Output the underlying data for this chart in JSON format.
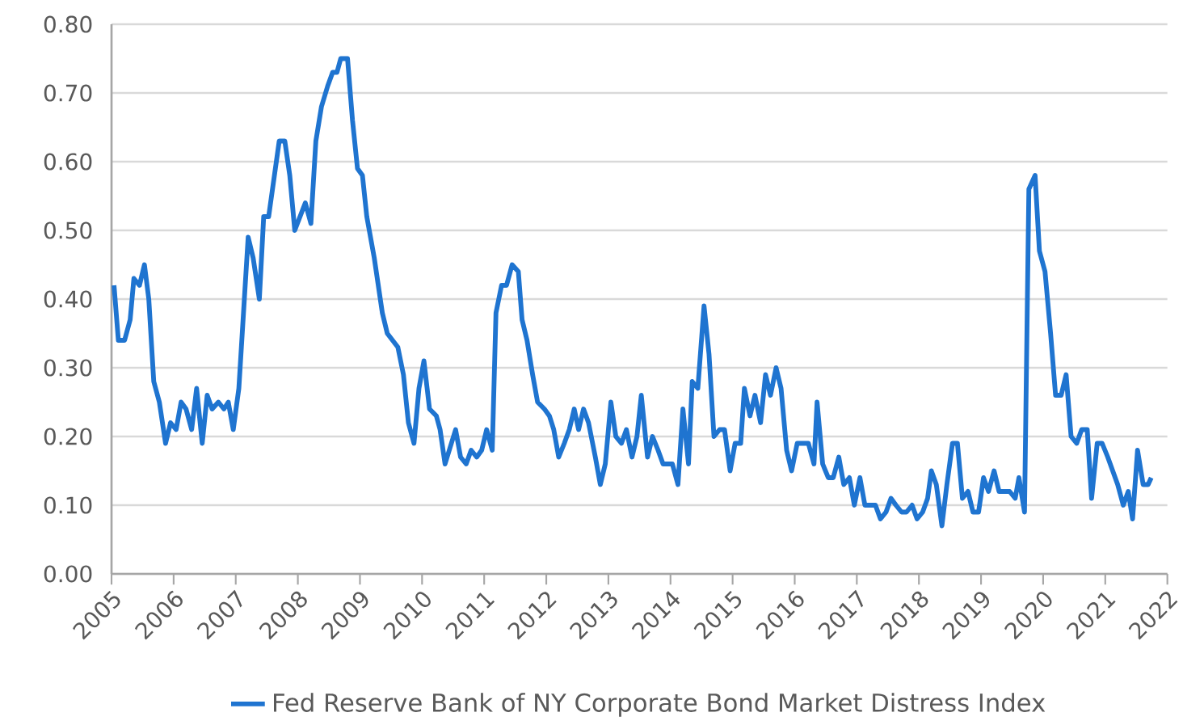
{
  "chart_data": {
    "type": "line",
    "series": [
      {
        "name": "Fed Reserve Bank of NY Corporate Bond Market Distress Index",
        "color": "#1f74d0",
        "x": [
          2005.04,
          2005.11,
          2005.21,
          2005.3,
          2005.36,
          2005.45,
          2005.53,
          2005.6,
          2005.68,
          2005.77,
          2005.87,
          2005.95,
          2006.04,
          2006.12,
          2006.2,
          2006.29,
          2006.37,
          2006.46,
          2006.54,
          2006.62,
          2006.72,
          2006.81,
          2006.88,
          2006.96,
          2007.05,
          2007.2,
          2007.28,
          2007.38,
          2007.45,
          2007.53,
          2007.7,
          2007.79,
          2007.87,
          2007.95,
          2008.12,
          2008.21,
          2008.29,
          2008.38,
          2008.48,
          2008.56,
          2008.63,
          2008.69,
          2008.8,
          2008.88,
          2008.96,
          2009.04,
          2009.11,
          2009.23,
          2009.36,
          2009.44,
          2009.61,
          2009.7,
          2009.78,
          2009.87,
          2009.95,
          2010.03,
          2010.12,
          2010.23,
          2010.29,
          2010.37,
          2010.54,
          2010.62,
          2010.71,
          2010.79,
          2010.88,
          2010.96,
          2011.04,
          2011.13,
          2011.19,
          2011.28,
          2011.36,
          2011.45,
          2011.55,
          2011.61,
          2011.69,
          2011.78,
          2011.86,
          2011.97,
          2012.05,
          2012.12,
          2012.2,
          2012.29,
          2012.37,
          2012.45,
          2012.52,
          2012.6,
          2012.68,
          2012.79,
          2012.87,
          2012.95,
          2013.04,
          2013.12,
          2013.21,
          2013.29,
          2013.38,
          2013.46,
          2013.53,
          2013.63,
          2013.71,
          2013.8,
          2013.88,
          2013.96,
          2014.03,
          2014.12,
          2014.2,
          2014.29,
          2014.35,
          2014.44,
          2014.54,
          2014.62,
          2014.7,
          2014.79,
          2014.87,
          2014.96,
          2015.04,
          2015.13,
          2015.19,
          2015.28,
          2015.36,
          2015.45,
          2015.53,
          2015.61,
          2015.7,
          2015.78,
          2015.87,
          2015.95,
          2016.04,
          2016.14,
          2016.22,
          2016.31,
          2016.36,
          2016.45,
          2016.54,
          2016.62,
          2016.71,
          2016.79,
          2016.88,
          2016.96,
          2017.05,
          2017.13,
          2017.21,
          2017.3,
          2017.38,
          2017.47,
          2017.55,
          2017.63,
          2017.72,
          2017.8,
          2017.89,
          2017.97,
          2018.06,
          2018.14,
          2018.2,
          2018.28,
          2018.37,
          2018.45,
          2018.54,
          2018.62,
          2018.7,
          2018.79,
          2018.87,
          2018.96,
          2019.04,
          2019.12,
          2019.21,
          2019.29,
          2019.38,
          2019.46,
          2019.55,
          2019.61,
          2019.7,
          2019.77,
          2019.87,
          2019.94,
          2020.03,
          2020.12,
          2020.2,
          2020.29,
          2020.37,
          2020.45,
          2020.54,
          2020.62,
          2020.71,
          2020.78,
          2020.87,
          2020.95,
          2021.04,
          2021.12,
          2021.2,
          2021.29,
          2021.37,
          2021.44,
          2021.52,
          2021.61,
          2021.69,
          2021.74
        ],
        "values": [
          0.42,
          0.34,
          0.34,
          0.37,
          0.43,
          0.42,
          0.45,
          0.4,
          0.28,
          0.25,
          0.19,
          0.22,
          0.21,
          0.25,
          0.24,
          0.21,
          0.27,
          0.19,
          0.26,
          0.24,
          0.25,
          0.24,
          0.25,
          0.21,
          0.27,
          0.49,
          0.46,
          0.4,
          0.52,
          0.52,
          0.63,
          0.63,
          0.58,
          0.5,
          0.54,
          0.51,
          0.63,
          0.68,
          0.71,
          0.73,
          0.73,
          0.75,
          0.75,
          0.66,
          0.59,
          0.58,
          0.52,
          0.46,
          0.38,
          0.35,
          0.33,
          0.29,
          0.22,
          0.19,
          0.27,
          0.31,
          0.24,
          0.23,
          0.21,
          0.16,
          0.21,
          0.17,
          0.16,
          0.18,
          0.17,
          0.18,
          0.21,
          0.18,
          0.38,
          0.42,
          0.42,
          0.45,
          0.44,
          0.37,
          0.34,
          0.29,
          0.25,
          0.24,
          0.23,
          0.21,
          0.17,
          0.19,
          0.21,
          0.24,
          0.21,
          0.24,
          0.22,
          0.17,
          0.13,
          0.16,
          0.25,
          0.2,
          0.19,
          0.21,
          0.17,
          0.2,
          0.26,
          0.17,
          0.2,
          0.18,
          0.16,
          0.16,
          0.16,
          0.13,
          0.24,
          0.16,
          0.28,
          0.27,
          0.39,
          0.32,
          0.2,
          0.21,
          0.21,
          0.15,
          0.19,
          0.19,
          0.27,
          0.23,
          0.26,
          0.22,
          0.29,
          0.26,
          0.3,
          0.27,
          0.18,
          0.15,
          0.19,
          0.19,
          0.19,
          0.16,
          0.25,
          0.16,
          0.14,
          0.14,
          0.17,
          0.13,
          0.14,
          0.1,
          0.14,
          0.1,
          0.1,
          0.1,
          0.08,
          0.09,
          0.11,
          0.1,
          0.09,
          0.09,
          0.1,
          0.08,
          0.09,
          0.11,
          0.15,
          0.13,
          0.07,
          0.13,
          0.19,
          0.19,
          0.11,
          0.12,
          0.09,
          0.09,
          0.14,
          0.12,
          0.15,
          0.12,
          0.12,
          0.12,
          0.11,
          0.14,
          0.09,
          0.56,
          0.58,
          0.47,
          0.44,
          0.35,
          0.26,
          0.26,
          0.29,
          0.2,
          0.19,
          0.21,
          0.21,
          0.11,
          0.19,
          0.19,
          0.17,
          0.15,
          0.13,
          0.1,
          0.12,
          0.08,
          0.18,
          0.13,
          0.13,
          0.14
        ]
      }
    ],
    "xlim": [
      2005,
      2022
    ],
    "xticks": [
      2005,
      2006,
      2007,
      2008,
      2009,
      2010,
      2011,
      2012,
      2013,
      2014,
      2015,
      2016,
      2017,
      2018,
      2019,
      2020,
      2021,
      2022
    ],
    "ylim": [
      0,
      0.8
    ],
    "yticks": [
      {
        "value": 0,
        "label": "0.00"
      },
      {
        "value": 0.1,
        "label": "0.10"
      },
      {
        "value": 0.2,
        "label": "0.20"
      },
      {
        "value": 0.3,
        "label": "0.30"
      },
      {
        "value": 0.4,
        "label": "0.40"
      },
      {
        "value": 0.5,
        "label": "0.50"
      },
      {
        "value": 0.6,
        "label": "0.60"
      },
      {
        "value": 0.7,
        "label": "0.70"
      },
      {
        "value": 0.8,
        "label": "0.80"
      }
    ],
    "grid": "y",
    "legend": "bottom",
    "marker": "none",
    "line_style": "solid"
  }
}
